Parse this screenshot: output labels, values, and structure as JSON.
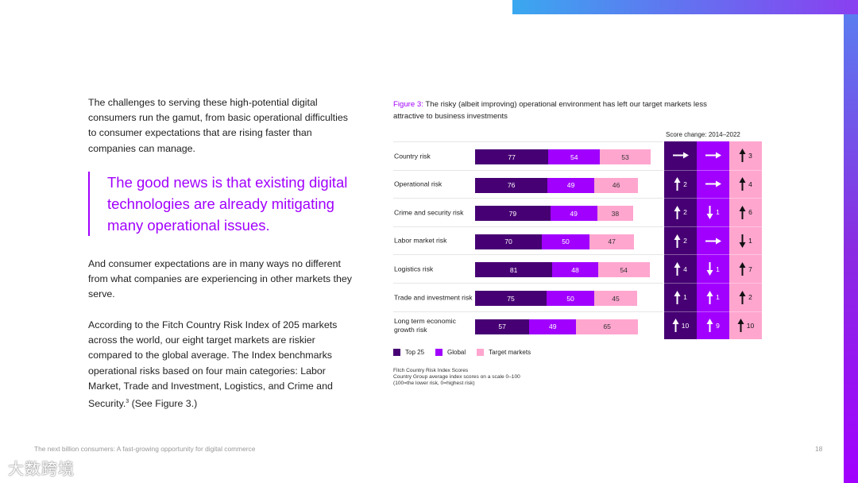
{
  "text": {
    "p1": "The challenges to serving these high-potential digital consumers run the gamut, from basic operational difficulties to consumer expectations that are rising faster than companies can manage.",
    "quote": "The good news is that existing digital technologies are already mitigating many operational issues.",
    "p2": "And consumer expectations are in many ways no different from what companies are experiencing in other markets they serve.",
    "p3": "According to the Fitch Country Risk Index of 205 markets across the world, our eight target markets are riskier compared to the global average. The Index benchmarks operational risks based on four main categories: Labor Market, Trade and Investment, Logistics, and Crime and Security.",
    "p3_sup": "3",
    "p3_end": " (See Figure 3.)"
  },
  "figure": {
    "label": "Figure 3:",
    "caption": " The risky (albeit improving) operational environment has left our target markets less attractive to business investments",
    "score_change": "Score change: 2014–2022",
    "source": [
      "Fitch Country Risk Index Scores",
      "Country Group average index scores on a scale 0–100",
      "(100=the lower risk, 0=highest risk)"
    ]
  },
  "chart_data": {
    "type": "bar",
    "stacked": true,
    "categories": [
      "Country risk",
      "Operational risk",
      "Crime and security risk",
      "Labor market risk",
      "Logistics risk",
      "Trade and investment risk",
      "Long term economic growth risk"
    ],
    "series": [
      {
        "name": "Top 25",
        "color": "#460073",
        "values": [
          77,
          76,
          79,
          70,
          81,
          75,
          57
        ],
        "change": [
          [
            "right",
            ""
          ],
          [
            "up",
            "2"
          ],
          [
            "up",
            "2"
          ],
          [
            "up",
            "2"
          ],
          [
            "up",
            "4"
          ],
          [
            "up",
            "1"
          ],
          [
            "up",
            "10"
          ]
        ]
      },
      {
        "name": "Global",
        "color": "#a100ff",
        "values": [
          54,
          49,
          49,
          50,
          48,
          50,
          49
        ],
        "change": [
          [
            "right",
            ""
          ],
          [
            "right",
            ""
          ],
          [
            "down",
            "1"
          ],
          [
            "right",
            ""
          ],
          [
            "down",
            "1"
          ],
          [
            "up",
            "1"
          ],
          [
            "up",
            "9"
          ]
        ]
      },
      {
        "name": "Target markets",
        "color": "#ffa6cf",
        "values": [
          53,
          46,
          38,
          47,
          54,
          45,
          65
        ],
        "change": [
          [
            "up",
            "3"
          ],
          [
            "up",
            "4"
          ],
          [
            "up",
            "6"
          ],
          [
            "down",
            "1"
          ],
          [
            "up",
            "7"
          ],
          [
            "up",
            "2"
          ],
          [
            "up",
            "10"
          ]
        ]
      }
    ]
  },
  "footer": {
    "title": "The next billion consumers: A fast-growing opportunity for digital commerce",
    "page": "18"
  },
  "watermark": "大数跨境"
}
